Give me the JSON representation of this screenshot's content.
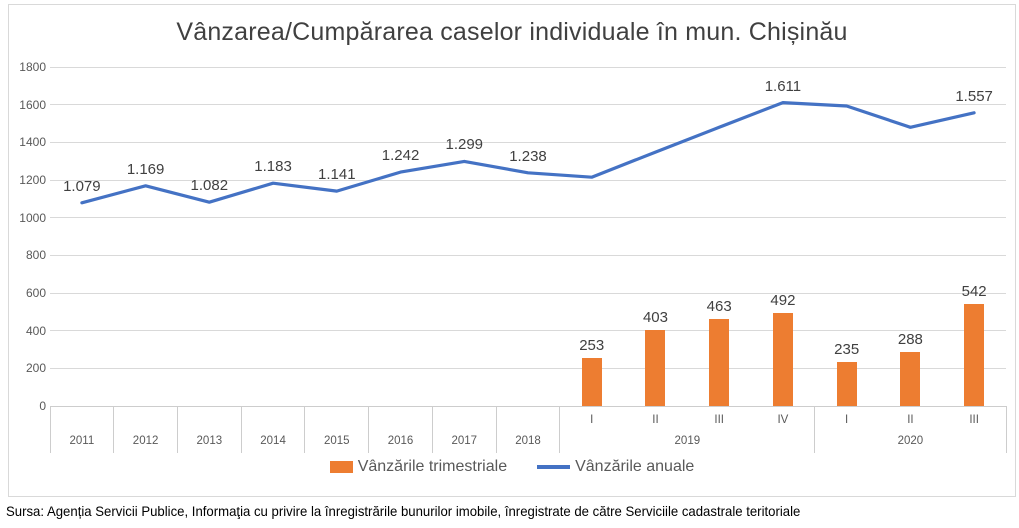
{
  "source": "Sursa: Agenția Servicii Publice, Informaţia cu privire la înregistrările bunurilor imobile, înregistrate de către Serviciile cadastrale teritoriale",
  "colors": {
    "bar": "#ED7D31",
    "line": "#4472C4",
    "gridline": "#D9D9D9",
    "axis_line": "#CDCDCD",
    "chart_border": "#D9D9D9",
    "title_text": "#404040",
    "data_label_text": "#404040",
    "axis_text": "#595959"
  },
  "chart_data": {
    "type": "combo: bar + line",
    "title": "Vânzarea/Cumpărarea caselor individuale în mun. Chișinău",
    "categories": [
      "2011",
      "2012",
      "2013",
      "2014",
      "2015",
      "2016",
      "2017",
      "2018",
      "2019-I",
      "2019-II",
      "2019-III",
      "2019-IV",
      "2020-I",
      "2020-II",
      "2020-III"
    ],
    "axis_leaf_labels": [
      "",
      "",
      "",
      "",
      "",
      "",
      "",
      "",
      "I",
      "II",
      "III",
      "IV",
      "I",
      "II",
      "III"
    ],
    "axis_groups": [
      {
        "label": "2011",
        "span": 1
      },
      {
        "label": "2012",
        "span": 1
      },
      {
        "label": "2013",
        "span": 1
      },
      {
        "label": "2014",
        "span": 1
      },
      {
        "label": "2015",
        "span": 1
      },
      {
        "label": "2016",
        "span": 1
      },
      {
        "label": "2017",
        "span": 1
      },
      {
        "label": "2018",
        "span": 1
      },
      {
        "label": "2019",
        "span": 4
      },
      {
        "label": "2020",
        "span": 3
      }
    ],
    "series": [
      {
        "name": "Vânzările trimestriale",
        "type": "bar",
        "color": "#ED7D31",
        "values": [
          null,
          null,
          null,
          null,
          null,
          null,
          null,
          null,
          253,
          403,
          463,
          492,
          235,
          288,
          542
        ],
        "data_labels": [
          null,
          null,
          null,
          null,
          null,
          null,
          null,
          null,
          "253",
          "403",
          "463",
          "492",
          "235",
          "288",
          "542"
        ]
      },
      {
        "name": "Vânzările anuale",
        "type": "line",
        "color": "#4472C4",
        "values": [
          1079,
          1169,
          1082,
          1183,
          1141,
          1242,
          1299,
          1238,
          1215,
          1348,
          1480,
          1611,
          1593,
          1480,
          1557
        ],
        "data_labels": [
          "1.079",
          "1.169",
          "1.082",
          "1.183",
          "1.141",
          "1.242",
          "1.299",
          "1.238",
          null,
          null,
          null,
          "1.611",
          null,
          null,
          "1.557"
        ]
      }
    ],
    "ylim": [
      0,
      1800
    ],
    "yticks": [
      0,
      200,
      400,
      600,
      800,
      1000,
      1200,
      1400,
      1600,
      1800
    ],
    "grid": true,
    "legend_position": "bottom"
  }
}
